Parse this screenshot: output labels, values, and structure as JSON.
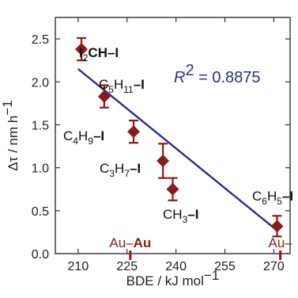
{
  "chart_data": {
    "type": "scatter",
    "xlabel_main": "BDE / kJ mol",
    "xlabel_sup": "−1",
    "ylabel_main": "Δτ / nm h",
    "ylabel_sup": "−1",
    "xlim": [
      203,
      275
    ],
    "ylim": [
      0.0,
      2.75
    ],
    "xticks": [
      210,
      225,
      240,
      255,
      270
    ],
    "yticks": [
      0.0,
      0.5,
      1.0,
      1.5,
      2.0,
      2.5
    ],
    "ytick_labels": [
      "0.0",
      "0.5",
      "1.0",
      "1.5",
      "2.0",
      "2.5"
    ],
    "grid": false,
    "marker_color": "#8b1a1a",
    "line_color": "#2b2f86",
    "points": [
      {
        "x": 211,
        "y": 2.38,
        "err": 0.13,
        "label_parts": [
          "I",
          "2",
          "CH–I"
        ]
      },
      {
        "x": 218,
        "y": 1.83,
        "err": 0.13,
        "label_parts": [
          "C",
          "5",
          "H",
          "11",
          "–I"
        ]
      },
      {
        "x": 227,
        "y": 1.42,
        "err": 0.13,
        "label_parts": [
          "C",
          "4",
          "H",
          "9",
          "–I"
        ]
      },
      {
        "x": 236,
        "y": 1.08,
        "err": 0.2,
        "label_parts": [
          "C",
          "3",
          "H",
          "7",
          "–I"
        ]
      },
      {
        "x": 239,
        "y": 0.75,
        "err": 0.13,
        "label_parts": [
          "CH",
          "3",
          "–I"
        ]
      },
      {
        "x": 271,
        "y": 0.32,
        "err": 0.12,
        "label_parts": [
          "C",
          "6",
          "H",
          "5",
          "–I"
        ]
      }
    ],
    "fit_line": {
      "x": [
        210,
        270
      ],
      "y": [
        2.15,
        0.3
      ],
      "r2_symbol": "R",
      "r2_sup": "2",
      "r2_value": "= 0.8875"
    },
    "markers": [
      {
        "x": 226,
        "label_prefix": "Au–",
        "label_bold": "Au"
      },
      {
        "x": 272,
        "label_prefix": "Au–",
        "label_bold": ""
      }
    ]
  }
}
